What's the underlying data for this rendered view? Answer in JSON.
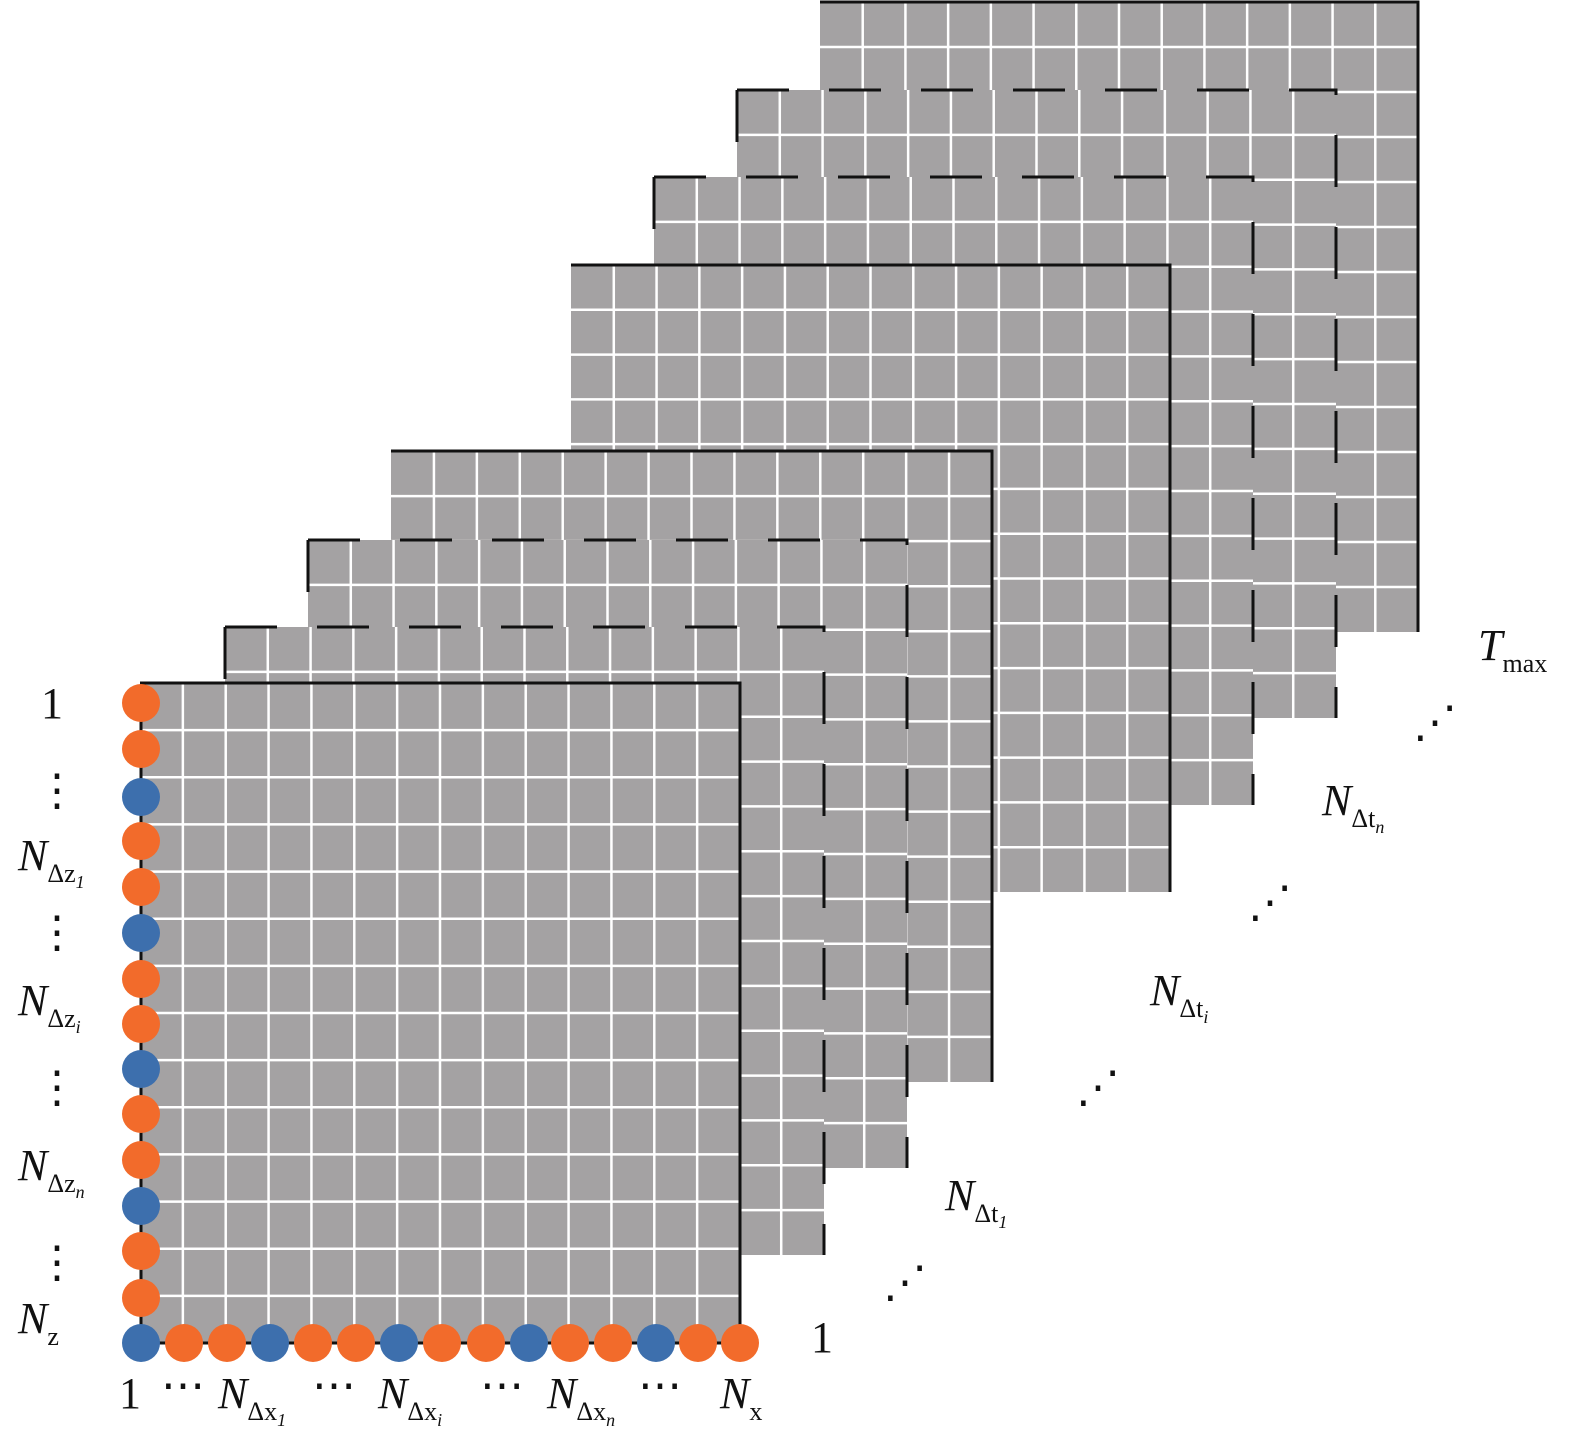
{
  "z_axis": {
    "labels": [
      {
        "main": "1"
      },
      {
        "main": "⋮"
      },
      {
        "main": "N",
        "sub": "Δz",
        "subsub": "1"
      },
      {
        "main": "⋮"
      },
      {
        "main": "N",
        "sub": "Δz",
        "subsub": "i"
      },
      {
        "main": "⋮"
      },
      {
        "main": "N",
        "sub": "Δz",
        "subsub": "n"
      },
      {
        "main": "⋮"
      },
      {
        "main": "N",
        "sub": "z"
      }
    ]
  },
  "x_axis": {
    "labels": [
      {
        "main": "1"
      },
      {
        "main": "⋯"
      },
      {
        "main": "N",
        "sub": "Δx",
        "subsub": "1"
      },
      {
        "main": "⋯"
      },
      {
        "main": "N",
        "sub": "Δx",
        "subsub": "i"
      },
      {
        "main": "⋯"
      },
      {
        "main": "N",
        "sub": "Δx",
        "subsub": "n"
      },
      {
        "main": "⋯"
      },
      {
        "main": "N",
        "sub": "x"
      }
    ]
  },
  "t_axis": {
    "labels": [
      {
        "main": "1"
      },
      {
        "main": "⋰"
      },
      {
        "main": "N",
        "sub": "Δt",
        "subsub": "1"
      },
      {
        "main": "⋰"
      },
      {
        "main": "N",
        "sub": "Δt",
        "subsub": "i"
      },
      {
        "main": "⋰"
      },
      {
        "main": "N",
        "sub": "Δt",
        "subsub": "n"
      },
      {
        "main": "⋰"
      },
      {
        "main": "T",
        "sub": "max"
      }
    ]
  }
}
